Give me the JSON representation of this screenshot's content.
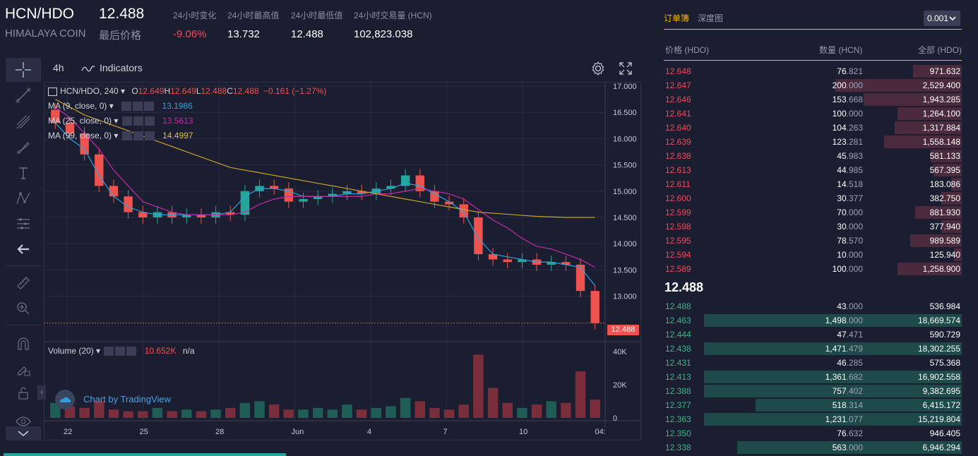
{
  "header": {
    "pair": "HCN/HDO",
    "last_price": "12.488",
    "coin_name": "HIMALAYA COIN",
    "last_price_label": "最后价格",
    "stats": [
      {
        "label": "24小时变化",
        "value": "-9.06%"
      },
      {
        "label": "24小时最高值",
        "value": "13.732"
      },
      {
        "label": "24小时最低值",
        "value": "12.488"
      },
      {
        "label": "24小时交易量 (HCN)",
        "value": "102,823.038"
      }
    ]
  },
  "toolbar": {
    "interval": "4h",
    "indicators": "Indicators"
  },
  "chart": {
    "legend_symbol": "HCN/HDO, 240",
    "ohlc": {
      "o_label": "O",
      "o": "12.649",
      "h_label": "H",
      "h": "12.649",
      "l_label": "L",
      "l": "12.488",
      "c_label": "C",
      "c": "12.488",
      "change": "−0.161 (−1.27%)"
    },
    "ma": [
      {
        "label": "MA (9, close, 0)",
        "value": "13.1986",
        "color": "#2ea3d8"
      },
      {
        "label": "MA (25, close, 0)",
        "value": "13.5613",
        "color": "#c22ca8"
      },
      {
        "label": "MA (99, close, 0)",
        "value": "14.4997",
        "color": "#c9a227"
      }
    ],
    "volume_label": "Volume (20)",
    "volume_value": "10.652K",
    "volume_na": "n/a",
    "watermark": "Chart by TradingView",
    "price_tag": "12.488"
  },
  "chart_data": {
    "type": "line",
    "title": "",
    "price_ticks": [
      "17.000",
      "16.500",
      "16.000",
      "15.500",
      "15.000",
      "14.500",
      "14.000",
      "13.500",
      "13.000"
    ],
    "volume_ticks": [
      "40K",
      "20K",
      "0"
    ],
    "x_ticks": [
      "22",
      "25",
      "28",
      "Jun",
      "4",
      "7",
      "10",
      "04:"
    ],
    "ylim": [
      12.35,
      17.0
    ],
    "series": [
      {
        "name": "MA (9, close, 0)",
        "values": [
          16.3,
          16.0,
          15.8,
          15.3,
          14.9,
          14.7,
          14.6,
          14.55,
          14.55,
          14.55,
          14.55,
          14.55,
          14.6,
          14.9,
          15.05,
          15.05,
          15.0,
          14.9,
          14.9,
          14.9,
          14.95,
          14.95,
          15.0,
          15.05,
          15.15,
          15.1,
          14.95,
          14.8,
          14.6,
          14.1,
          13.8,
          13.75,
          13.7,
          13.65,
          13.65,
          13.6,
          13.55,
          13.2
        ]
      },
      {
        "name": "MA (25, close, 0)",
        "values": [
          16.6,
          16.4,
          16.1,
          15.8,
          15.4,
          15.1,
          14.8,
          14.7,
          14.6,
          14.55,
          14.55,
          14.55,
          14.55,
          14.6,
          14.75,
          14.85,
          14.9,
          14.9,
          14.9,
          14.9,
          14.9,
          14.9,
          14.95,
          14.95,
          15.0,
          15.05,
          15.0,
          14.95,
          14.85,
          14.65,
          14.45,
          14.3,
          14.1,
          13.95,
          13.9,
          13.8,
          13.7,
          13.55
        ]
      },
      {
        "name": "MA (99, close, 0)",
        "values": [
          16.75,
          16.6,
          16.45,
          16.35,
          16.25,
          16.15,
          16.05,
          15.95,
          15.85,
          15.75,
          15.65,
          15.55,
          15.45,
          15.4,
          15.35,
          15.3,
          15.25,
          15.2,
          15.15,
          15.1,
          15.05,
          15.0,
          14.95,
          14.9,
          14.85,
          14.8,
          14.75,
          14.7,
          14.65,
          14.6,
          14.58,
          14.56,
          14.54,
          14.52,
          14.51,
          14.5,
          14.5,
          14.5
        ]
      }
    ],
    "close": [
      16.3,
      16.1,
      15.7,
      15.1,
      14.9,
      14.6,
      14.5,
      14.6,
      14.5,
      14.55,
      14.5,
      14.6,
      14.55,
      15.0,
      15.1,
      15.05,
      14.8,
      14.85,
      14.9,
      14.95,
      15.0,
      14.95,
      15.05,
      15.1,
      15.3,
      15.0,
      14.8,
      14.75,
      14.5,
      13.8,
      13.7,
      13.65,
      13.7,
      13.6,
      13.65,
      13.6,
      13.1,
      12.488
    ],
    "volume": [
      9,
      7,
      6,
      10,
      5,
      4,
      4,
      6,
      4,
      5,
      4,
      5,
      6,
      9,
      10,
      8,
      5,
      5,
      6,
      5,
      8,
      5,
      6,
      7,
      12,
      10,
      6,
      5,
      8,
      38,
      18,
      9,
      6,
      8,
      10,
      9,
      28,
      11
    ]
  },
  "orderbook": {
    "tabs": [
      "订单簿",
      "深度图"
    ],
    "precision": "0.001",
    "headers": [
      "价格 (HDO)",
      "数量 (HCN)",
      "全部 (HDO)"
    ],
    "mid_price": "12.488",
    "asks": [
      {
        "price": "12.648",
        "qty_int": "76",
        "qty_dec": ".821",
        "total": "971.632",
        "depth": 0.19
      },
      {
        "price": "12.647",
        "qty_int": "200",
        "qty_dec": ".000",
        "total": "2,529.400",
        "depth": 0.49
      },
      {
        "price": "12.646",
        "qty_int": "153",
        "qty_dec": ".668",
        "total": "1,943.285",
        "depth": 0.38
      },
      {
        "price": "12.641",
        "qty_int": "100",
        "qty_dec": ".000",
        "total": "1,264.100",
        "depth": 0.25
      },
      {
        "price": "12.640",
        "qty_int": "104",
        "qty_dec": ".263",
        "total": "1,317.884",
        "depth": 0.26
      },
      {
        "price": "12.639",
        "qty_int": "123",
        "qty_dec": ".281",
        "total": "1,558.148",
        "depth": 0.3
      },
      {
        "price": "12.638",
        "qty_int": "45",
        "qty_dec": ".983",
        "total": "581.133",
        "depth": 0.12
      },
      {
        "price": "12.613",
        "qty_int": "44",
        "qty_dec": ".985",
        "total": "567.395",
        "depth": 0.11
      },
      {
        "price": "12.611",
        "qty_int": "14",
        "qty_dec": ".518",
        "total": "183.086",
        "depth": 0.04
      },
      {
        "price": "12.600",
        "qty_int": "30",
        "qty_dec": ".377",
        "total": "382.750",
        "depth": 0.08
      },
      {
        "price": "12.599",
        "qty_int": "70",
        "qty_dec": ".000",
        "total": "881.930",
        "depth": 0.18
      },
      {
        "price": "12.598",
        "qty_int": "30",
        "qty_dec": ".000",
        "total": "377.940",
        "depth": 0.08
      },
      {
        "price": "12.595",
        "qty_int": "78",
        "qty_dec": ".570",
        "total": "989.589",
        "depth": 0.2
      },
      {
        "price": "12.594",
        "qty_int": "10",
        "qty_dec": ".000",
        "total": "125.940",
        "depth": 0.03
      },
      {
        "price": "12.589",
        "qty_int": "100",
        "qty_dec": ".000",
        "total": "1,258.900",
        "depth": 0.25
      }
    ],
    "bids": [
      {
        "price": "12.488",
        "qty_int": "43",
        "qty_dec": ".000",
        "total": "536.984",
        "depth": 0.0
      },
      {
        "price": "12.463",
        "qty_int": "1,498",
        "qty_dec": ".000",
        "total": "18,669.574",
        "depth": 1.0
      },
      {
        "price": "12.444",
        "qty_int": "47",
        "qty_dec": ".471",
        "total": "590.729",
        "depth": 0.0
      },
      {
        "price": "12.438",
        "qty_int": "1,471",
        "qty_dec": ".479",
        "total": "18,302.255",
        "depth": 1.0
      },
      {
        "price": "12.431",
        "qty_int": "46",
        "qty_dec": ".285",
        "total": "575.368",
        "depth": 0.0
      },
      {
        "price": "12.413",
        "qty_int": "1,361",
        "qty_dec": ".682",
        "total": "16,902.558",
        "depth": 1.0
      },
      {
        "price": "12.388",
        "qty_int": "757",
        "qty_dec": ".402",
        "total": "9,382.695",
        "depth": 1.0
      },
      {
        "price": "12.377",
        "qty_int": "518",
        "qty_dec": ".314",
        "total": "6,415.172",
        "depth": 0.8
      },
      {
        "price": "12.363",
        "qty_int": "1,231",
        "qty_dec": ".077",
        "total": "15,219.804",
        "depth": 1.0
      },
      {
        "price": "12.350",
        "qty_int": "76",
        "qty_dec": ".632",
        "total": "946.405",
        "depth": 0.0
      },
      {
        "price": "12.338",
        "qty_int": "563",
        "qty_dec": ".000",
        "total": "6,946.294",
        "depth": 0.87
      }
    ]
  },
  "colors": {
    "up": "#26a69a",
    "down": "#ef5350",
    "ask_text": "#f04b5a",
    "bid_text": "#2ebd85",
    "accent": "#f0b90b"
  },
  "icons": [
    "crosshair-icon",
    "trendline-icon",
    "fib-icon",
    "brush-icon",
    "text-icon",
    "pattern-icon",
    "measure-icon",
    "back-arrow-icon",
    "ruler-icon",
    "zoom-in-icon",
    "magnet-icon",
    "lock-draw-icon",
    "unlock-icon",
    "eye-icon",
    "collapse-icon",
    "settings-gear-icon",
    "fullscreen-icon",
    "tradingview-logo-icon"
  ]
}
